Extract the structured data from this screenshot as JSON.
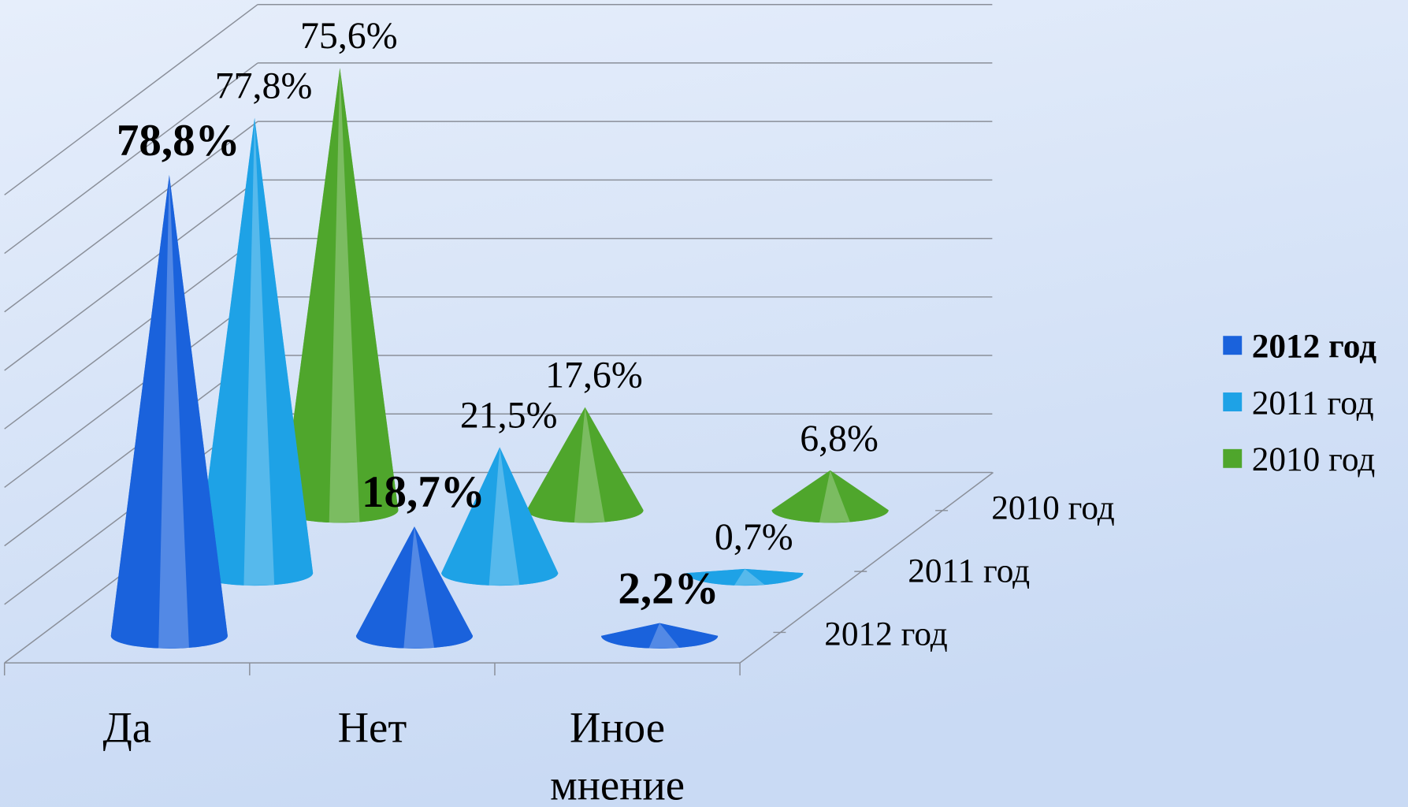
{
  "chart_data": {
    "type": "cone3d",
    "categories": [
      "Да",
      "Нет",
      "Иное мнение"
    ],
    "series": [
      {
        "name": "2012 год",
        "color": "#1a62dc",
        "values": [
          78.8,
          18.7,
          2.2
        ],
        "value_labels": [
          "78,8%",
          "18,7%",
          "2,2%"
        ]
      },
      {
        "name": "2011 год",
        "color": "#1ea2e6",
        "values": [
          77.8,
          21.5,
          0.7
        ],
        "value_labels": [
          "77,8%",
          "21,5%",
          "0,7%"
        ]
      },
      {
        "name": "2010 год",
        "color": "#4fa62c",
        "values": [
          75.6,
          17.6,
          6.8
        ],
        "value_labels": [
          "75,6%",
          "17,6%",
          "6,8%"
        ]
      }
    ],
    "ylim": [
      0,
      80
    ],
    "yticks": [
      0,
      10,
      20,
      30,
      40,
      50,
      60,
      70,
      80
    ],
    "grid": true,
    "legend": "right"
  }
}
